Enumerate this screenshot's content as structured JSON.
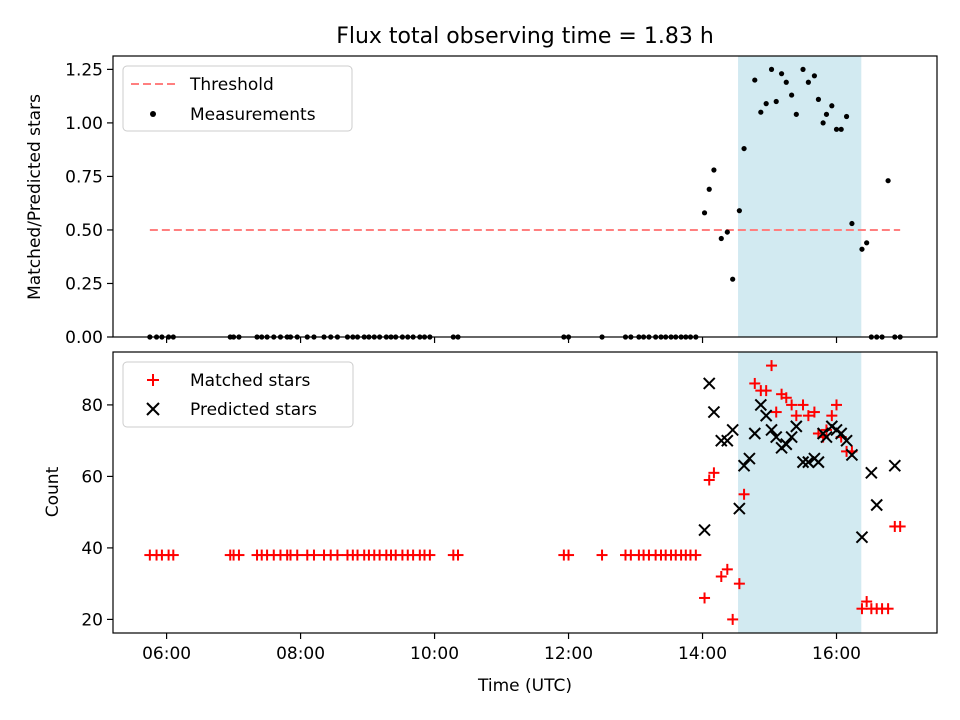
{
  "title": "Flux total observing time = 1.83 h",
  "colors": {
    "threshold": "#ff7f7f",
    "measurement": "#000000",
    "matched": "#ff0000",
    "predicted": "#000000",
    "highlight": "#add8e6"
  },
  "chart_data": [
    {
      "type": "scatter",
      "panel": "top",
      "ylabel": "Matched/Predicted stars",
      "xlabel": "",
      "xlim": [
        5.2,
        17.5
      ],
      "ylim": [
        0,
        1.3125
      ],
      "yticks": [
        0,
        0.25,
        0.5,
        0.75,
        1.0,
        1.25
      ],
      "ytick_labels": [
        "0.00",
        "0.25",
        "0.50",
        "0.75",
        "1.00",
        "1.25"
      ],
      "xticks": [
        6,
        8,
        10,
        12,
        14,
        16
      ],
      "show_xticklabels": false,
      "highlight_span": [
        14.53,
        16.37
      ],
      "legend": {
        "location": "top-left",
        "entries": [
          "Threshold",
          "Measurements"
        ]
      },
      "threshold": {
        "name": "Threshold",
        "x": [
          5.75,
          16.95
        ],
        "y": 0.5,
        "style": "dashed"
      },
      "series": [
        {
          "name": "Measurements",
          "marker": "dot",
          "x": [
            5.75,
            5.85,
            5.93,
            6.03,
            6.1,
            6.95,
            7.0,
            7.08,
            7.35,
            7.42,
            7.5,
            7.6,
            7.7,
            7.8,
            7.85,
            7.95,
            8.1,
            8.2,
            8.35,
            8.45,
            8.55,
            8.7,
            8.78,
            8.85,
            8.95,
            9.02,
            9.1,
            9.18,
            9.28,
            9.35,
            9.42,
            9.52,
            9.6,
            9.68,
            9.78,
            9.85,
            9.93,
            10.28,
            10.35,
            11.93,
            12.0,
            12.5,
            12.85,
            12.93,
            13.05,
            13.12,
            13.2,
            13.3,
            13.38,
            13.45,
            13.53,
            13.6,
            13.68,
            13.75,
            13.82,
            13.9,
            14.03,
            14.1,
            14.17,
            14.28,
            14.37,
            14.45,
            14.55,
            14.62,
            14.78,
            14.87,
            14.95,
            15.03,
            15.1,
            15.18,
            15.25,
            15.33,
            15.4,
            15.5,
            15.58,
            15.67,
            15.73,
            15.8,
            15.85,
            15.93,
            16.0,
            16.07,
            16.15,
            16.23,
            16.38,
            16.45,
            16.52,
            16.6,
            16.68,
            16.77,
            16.87,
            16.95
          ],
          "y": [
            0,
            0,
            0,
            0,
            0,
            0,
            0,
            0,
            0,
            0,
            0,
            0,
            0,
            0,
            0,
            0,
            0,
            0,
            0,
            0,
            0,
            0,
            0,
            0,
            0,
            0,
            0,
            0,
            0,
            0,
            0,
            0,
            0,
            0,
            0,
            0,
            0,
            0,
            0,
            0,
            0,
            0,
            0,
            0,
            0,
            0,
            0,
            0,
            0,
            0,
            0,
            0,
            0,
            0,
            0,
            0,
            0.58,
            0.69,
            0.78,
            0.46,
            0.49,
            0.27,
            0.59,
            0.88,
            1.2,
            1.05,
            1.09,
            1.25,
            1.1,
            1.23,
            1.19,
            1.13,
            1.04,
            1.25,
            1.19,
            1.22,
            1.11,
            1.0,
            1.04,
            1.08,
            0.97,
            0.97,
            1.03,
            0.53,
            0.41,
            0.44,
            0,
            0,
            0,
            0.73,
            0,
            0
          ]
        }
      ]
    },
    {
      "type": "scatter",
      "panel": "bottom",
      "xlabel": "Time (UTC)",
      "ylabel": "Count",
      "xlim": [
        5.2,
        17.5
      ],
      "ylim": [
        16.2,
        94.8
      ],
      "yticks": [
        20,
        40,
        60,
        80
      ],
      "ytick_labels": [
        "20",
        "40",
        "60",
        "80"
      ],
      "xticks": [
        6,
        8,
        10,
        12,
        14,
        16
      ],
      "xtick_labels": [
        "06:00",
        "08:00",
        "10:00",
        "12:00",
        "14:00",
        "16:00"
      ],
      "highlight_span": [
        14.53,
        16.37
      ],
      "legend": {
        "location": "top-left",
        "entries": [
          "Matched stars",
          "Predicted stars"
        ]
      },
      "series": [
        {
          "name": "Matched stars",
          "marker": "plus",
          "x": [
            5.75,
            5.85,
            5.93,
            6.03,
            6.1,
            6.95,
            7.0,
            7.08,
            7.35,
            7.42,
            7.5,
            7.6,
            7.7,
            7.8,
            7.85,
            7.95,
            8.1,
            8.2,
            8.35,
            8.45,
            8.55,
            8.7,
            8.78,
            8.85,
            8.95,
            9.02,
            9.1,
            9.18,
            9.28,
            9.35,
            9.42,
            9.52,
            9.6,
            9.68,
            9.78,
            9.85,
            9.93,
            10.28,
            10.35,
            11.93,
            12.0,
            12.5,
            12.85,
            12.93,
            13.05,
            13.12,
            13.2,
            13.3,
            13.38,
            13.45,
            13.53,
            13.6,
            13.68,
            13.75,
            13.82,
            13.9,
            14.03,
            14.1,
            14.17,
            14.28,
            14.37,
            14.45,
            14.55,
            14.62,
            14.78,
            14.87,
            14.95,
            15.03,
            15.1,
            15.18,
            15.25,
            15.33,
            15.4,
            15.5,
            15.58,
            15.67,
            15.73,
            15.8,
            15.85,
            15.93,
            16.0,
            16.07,
            16.15,
            16.23,
            16.38,
            16.45,
            16.52,
            16.6,
            16.68,
            16.77,
            16.87,
            16.95
          ],
          "y": [
            38,
            38,
            38,
            38,
            38,
            38,
            38,
            38,
            38,
            38,
            38,
            38,
            38,
            38,
            38,
            38,
            38,
            38,
            38,
            38,
            38,
            38,
            38,
            38,
            38,
            38,
            38,
            38,
            38,
            38,
            38,
            38,
            38,
            38,
            38,
            38,
            38,
            38,
            38,
            38,
            38,
            38,
            38,
            38,
            38,
            38,
            38,
            38,
            38,
            38,
            38,
            38,
            38,
            38,
            38,
            38,
            26,
            59,
            61,
            32,
            34,
            20,
            30,
            55,
            86,
            84,
            84,
            91,
            78,
            83,
            82,
            80,
            77,
            80,
            77,
            78,
            72,
            71,
            73,
            77,
            80,
            71,
            67,
            67,
            23,
            25,
            23,
            23,
            23,
            23,
            46,
            46
          ]
        },
        {
          "name": "Predicted stars",
          "marker": "x",
          "x": [
            14.03,
            14.1,
            14.17,
            14.28,
            14.37,
            14.45,
            14.55,
            14.62,
            14.7,
            14.78,
            14.87,
            14.95,
            15.03,
            15.1,
            15.18,
            15.25,
            15.33,
            15.4,
            15.5,
            15.58,
            15.67,
            15.73,
            15.8,
            15.85,
            15.93,
            16.0,
            16.07,
            16.15,
            16.23,
            16.38,
            16.52,
            16.6,
            16.87
          ],
          "y": [
            45,
            86,
            78,
            70,
            70,
            73,
            51,
            63,
            65,
            72,
            80,
            77,
            73,
            71,
            68,
            69,
            71,
            74,
            64,
            64,
            65,
            64,
            72,
            71,
            74,
            73,
            72,
            70,
            66,
            43,
            61,
            52,
            63
          ]
        }
      ]
    }
  ]
}
